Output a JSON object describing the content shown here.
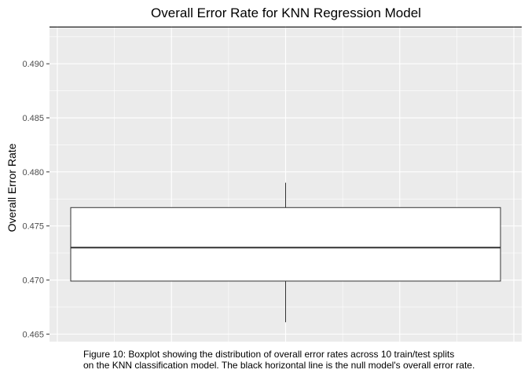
{
  "chart_data": {
    "type": "boxplot",
    "title": "Overall Error Rate for KNN Regression Model",
    "xlabel": "",
    "ylabel": "Overall Error Rate",
    "ylim": [
      0.4643,
      0.4935
    ],
    "y_ticks": [
      0.465,
      0.47,
      0.475,
      0.48,
      0.485,
      0.49
    ],
    "y_tick_labels": [
      "0.465",
      "0.470",
      "0.475",
      "0.480",
      "0.485",
      "0.490"
    ],
    "grid": true,
    "box": {
      "min": 0.4661,
      "q1": 0.4699,
      "median": 0.473,
      "q3": 0.4767,
      "max": 0.479
    },
    "reference_line": {
      "value": 0.4934,
      "description_label": "null model's overall error rate"
    },
    "colors": {
      "panel_background": "#ebebeb",
      "grid": "#ffffff",
      "box_fill": "#ffffff",
      "box_stroke": "#333333",
      "reference_line": "#000000"
    }
  },
  "caption": {
    "line1": "Figure 10: Boxplot showing the distribution of overall error rates across 10 train/test splits",
    "line2": "on the KNN classification model. The black horizontal line is the null model's overall error rate."
  }
}
